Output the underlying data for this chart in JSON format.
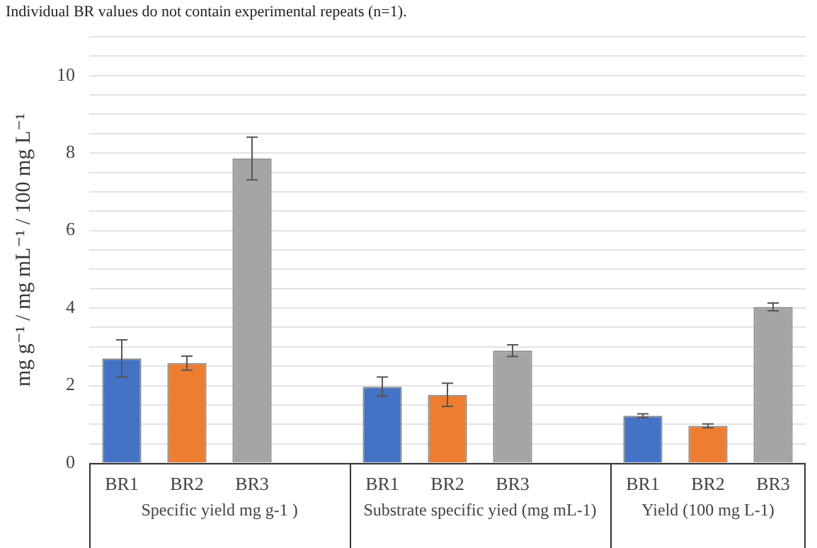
{
  "chart_data": {
    "type": "bar",
    "categories": [
      "BR1",
      "BR2",
      "BR3",
      null,
      "BR1",
      "BR2",
      "BR3",
      null,
      "BR1",
      "BR2",
      "BR3"
    ],
    "values": [
      2.7,
      2.58,
      7.86,
      null,
      1.97,
      1.76,
      2.9,
      null,
      1.22,
      0.96,
      4.03
    ],
    "errors": [
      0.48,
      0.18,
      0.55,
      null,
      0.25,
      0.3,
      0.15,
      null,
      0.05,
      0.05,
      0.1
    ],
    "colors": [
      "#4472c4",
      "#ed7d31",
      "#a5a5a5",
      null,
      "#4472c4",
      "#ed7d31",
      "#a5a5a5",
      null,
      "#4472c4",
      "#ed7d31",
      "#a5a5a5"
    ],
    "ylabel": "mg g⁻¹ / mg mL⁻¹ / 100 mg L⁻¹",
    "ylim": [
      0,
      11
    ],
    "yticks": [
      0,
      {
        "value": 0.5,
        "label": null
      },
      {
        "value": 1,
        "label": null
      },
      {
        "value": 1.5,
        "label": null
      },
      2,
      {
        "value": 2.5,
        "label": null
      },
      {
        "value": 3,
        "label": null
      },
      {
        "value": 3.5,
        "label": null
      },
      4,
      {
        "value": 4.5,
        "label": null
      },
      {
        "value": 5,
        "label": null
      },
      {
        "value": 5.5,
        "label": null
      },
      6,
      {
        "value": 6.5,
        "label": null
      },
      {
        "value": 7,
        "label": null
      },
      {
        "value": 7.5,
        "label": null
      },
      8,
      {
        "value": 8.5,
        "label": null
      },
      {
        "value": 9,
        "label": null
      },
      {
        "value": 9.5,
        "label": null
      },
      10,
      {
        "value": 10.5,
        "label": null
      },
      {
        "value": 11,
        "label": null
      }
    ],
    "grid": "y",
    "legend": false,
    "annotations": [
      "Individual BR values do not contain experimental repeats (n=1).",
      "Specific yield mg g-1 )",
      "Substrate specific yied (mg mL-1)",
      "Yield (100 mg L-1)"
    ]
  }
}
